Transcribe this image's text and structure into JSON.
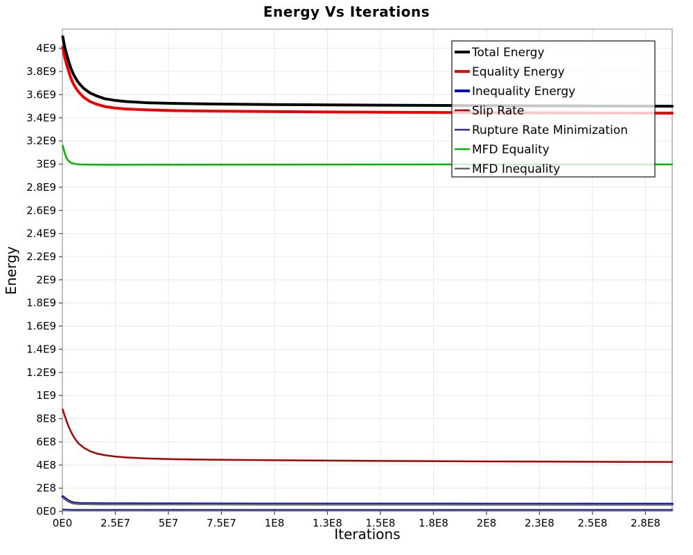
{
  "chart_data": {
    "type": "line",
    "title": "Energy Vs Iterations",
    "xlabel": "Iterations",
    "ylabel": "Energy",
    "xlim": [
      0,
      287600000
    ],
    "ylim": [
      0,
      4166000000
    ],
    "grid": true,
    "legend_position": "top-right",
    "x_ticks": [
      {
        "v": 0,
        "label": "0E0"
      },
      {
        "v": 25000000,
        "label": "2.5E7"
      },
      {
        "v": 50000000,
        "label": "5E7"
      },
      {
        "v": 75000000,
        "label": "7.5E7"
      },
      {
        "v": 100000000,
        "label": "1E8"
      },
      {
        "v": 125000000,
        "label": "1.3E8"
      },
      {
        "v": 150000000,
        "label": "1.5E8"
      },
      {
        "v": 175000000,
        "label": "1.8E8"
      },
      {
        "v": 200000000,
        "label": "2E8"
      },
      {
        "v": 225000000,
        "label": "2.3E8"
      },
      {
        "v": 250000000,
        "label": "2.5E8"
      },
      {
        "v": 275000000,
        "label": "2.8E8"
      }
    ],
    "y_ticks": [
      {
        "v": 0,
        "label": "0E0"
      },
      {
        "v": 200000000,
        "label": "2E8"
      },
      {
        "v": 400000000,
        "label": "4E8"
      },
      {
        "v": 600000000,
        "label": "6E8"
      },
      {
        "v": 800000000,
        "label": "8E8"
      },
      {
        "v": 1000000000,
        "label": "1E9"
      },
      {
        "v": 1200000000,
        "label": "1.2E9"
      },
      {
        "v": 1400000000,
        "label": "1.4E9"
      },
      {
        "v": 1600000000,
        "label": "1.6E9"
      },
      {
        "v": 1800000000,
        "label": "1.8E9"
      },
      {
        "v": 2000000000,
        "label": "2E9"
      },
      {
        "v": 2200000000,
        "label": "2.2E9"
      },
      {
        "v": 2400000000,
        "label": "2.4E9"
      },
      {
        "v": 2600000000,
        "label": "2.6E9"
      },
      {
        "v": 2800000000,
        "label": "2.8E9"
      },
      {
        "v": 3000000000,
        "label": "3E9"
      },
      {
        "v": 3200000000,
        "label": "3.2E9"
      },
      {
        "v": 3400000000,
        "label": "3.4E9"
      },
      {
        "v": 3600000000,
        "label": "3.6E9"
      },
      {
        "v": 3800000000,
        "label": "3.8E9"
      },
      {
        "v": 4000000000,
        "label": "4E9"
      }
    ],
    "series": [
      {
        "name": "Total Energy",
        "color": "#000000",
        "width": 4,
        "points": [
          [
            200000.0,
            4100000000.0
          ],
          [
            1000000.0,
            4020000000.0
          ],
          [
            2000000.0,
            3950000000.0
          ],
          [
            3000000.0,
            3885000000.0
          ],
          [
            4000000.0,
            3830000000.0
          ],
          [
            5000000.0,
            3785000000.0
          ],
          [
            6000000.0,
            3750000000.0
          ],
          [
            7000000.0,
            3720000000.0
          ],
          [
            8000000.0,
            3695000000.0
          ],
          [
            10000000.0,
            3655000000.0
          ],
          [
            13000000.0,
            3615000000.0
          ],
          [
            16000000.0,
            3590000000.0
          ],
          [
            20000000.0,
            3565000000.0
          ],
          [
            25000000.0,
            3550000000.0
          ],
          [
            30000000.0,
            3540000000.0
          ],
          [
            40000000.0,
            3530000000.0
          ],
          [
            50000000.0,
            3525000000.0
          ],
          [
            70000000.0,
            3519000000.0
          ],
          [
            100000000.0,
            3514000000.0
          ],
          [
            150000000.0,
            3509000000.0
          ],
          [
            200000000.0,
            3505000000.0
          ],
          [
            250000000.0,
            3502000000.0
          ],
          [
            287600000.0,
            3500000000.0
          ]
        ]
      },
      {
        "name": "Equality Energy",
        "color": "#ee0000",
        "width": 4,
        "points": [
          [
            200000.0,
            4010000000.0
          ],
          [
            1000000.0,
            3930000000.0
          ],
          [
            2000000.0,
            3860000000.0
          ],
          [
            3000000.0,
            3800000000.0
          ],
          [
            4000000.0,
            3745000000.0
          ],
          [
            5000000.0,
            3700000000.0
          ],
          [
            6000000.0,
            3667000000.0
          ],
          [
            7000000.0,
            3640000000.0
          ],
          [
            8000000.0,
            3617000000.0
          ],
          [
            10000000.0,
            3578000000.0
          ],
          [
            13000000.0,
            3541000000.0
          ],
          [
            16000000.0,
            3518000000.0
          ],
          [
            20000000.0,
            3497000000.0
          ],
          [
            25000000.0,
            3484000000.0
          ],
          [
            30000000.0,
            3476000000.0
          ],
          [
            40000000.0,
            3468000000.0
          ],
          [
            50000000.0,
            3463000000.0
          ],
          [
            70000000.0,
            3458000000.0
          ],
          [
            100000000.0,
            3453000000.0
          ],
          [
            150000000.0,
            3448000000.0
          ],
          [
            200000000.0,
            3444000000.0
          ],
          [
            250000000.0,
            3441000000.0
          ],
          [
            287600000.0,
            3440000000.0
          ]
        ]
      },
      {
        "name": "Inequality Energy",
        "color": "#0000dd",
        "width": 4,
        "points": [
          [
            200000.0,
            125000000.0
          ],
          [
            1000000.0,
            113000000.0
          ],
          [
            2000000.0,
            100000000.0
          ],
          [
            3000000.0,
            88000000.0
          ],
          [
            4000000.0,
            79000000.0
          ],
          [
            5000000.0,
            73000000.0
          ],
          [
            6000000.0,
            70000000.0
          ],
          [
            8000000.0,
            67500000.0
          ],
          [
            10000000.0,
            66000000.0
          ],
          [
            20000000.0,
            64500000.0
          ],
          [
            50000000.0,
            63500000.0
          ],
          [
            100000000.0,
            62500000.0
          ],
          [
            200000000.0,
            61500000.0
          ],
          [
            287600000.0,
            61000000.0
          ]
        ]
      },
      {
        "name": "Slip Rate",
        "color": "#aa0000",
        "width": 2.5,
        "points": [
          [
            200000.0,
            880000000.0
          ],
          [
            1000000.0,
            830000000.0
          ],
          [
            2000000.0,
            780000000.0
          ],
          [
            3000000.0,
            730000000.0
          ],
          [
            4000000.0,
            690000000.0
          ],
          [
            5000000.0,
            655000000.0
          ],
          [
            6000000.0,
            625000000.0
          ],
          [
            7000000.0,
            600000000.0
          ],
          [
            8000000.0,
            580000000.0
          ],
          [
            10000000.0,
            550000000.0
          ],
          [
            13000000.0,
            520000000.0
          ],
          [
            16000000.0,
            500000000.0
          ],
          [
            20000000.0,
            485000000.0
          ],
          [
            25000000.0,
            473000000.0
          ],
          [
            30000000.0,
            465000000.0
          ],
          [
            40000000.0,
            456000000.0
          ],
          [
            50000000.0,
            451000000.0
          ],
          [
            70000000.0,
            446000000.0
          ],
          [
            100000000.0,
            441000000.0
          ],
          [
            150000000.0,
            435000000.0
          ],
          [
            200000000.0,
            431000000.0
          ],
          [
            250000000.0,
            428000000.0
          ],
          [
            287600000.0,
            426000000.0
          ]
        ]
      },
      {
        "name": "Rupture Rate Minimization",
        "color": "#2b2b8f",
        "width": 2.5,
        "points": [
          [
            200000.0,
            15000000.0
          ],
          [
            2000000.0,
            13000000.0
          ],
          [
            5000000.0,
            12000000.0
          ],
          [
            10000000.0,
            12000000.0
          ],
          [
            100000000.0,
            12000000.0
          ],
          [
            287600000.0,
            12000000.0
          ]
        ]
      },
      {
        "name": "MFD Equality",
        "color": "#00b300",
        "width": 2.5,
        "points": [
          [
            200000.0,
            3160000000.0
          ],
          [
            1000000.0,
            3100000000.0
          ],
          [
            2000000.0,
            3050000000.0
          ],
          [
            3000000.0,
            3025000000.0
          ],
          [
            4000000.0,
            3012000000.0
          ],
          [
            5000000.0,
            3005000000.0
          ],
          [
            7000000.0,
            2999000000.0
          ],
          [
            10000000.0,
            2996000000.0
          ],
          [
            20000000.0,
            2994000000.0
          ],
          [
            50000000.0,
            2995000000.0
          ],
          [
            100000000.0,
            2996000000.0
          ],
          [
            200000000.0,
            2997000000.0
          ],
          [
            287600000.0,
            2997000000.0
          ]
        ]
      },
      {
        "name": "MFD Inequality",
        "color": "#666666",
        "width": 2.5,
        "points": [
          [
            200000.0,
            119000000.0
          ],
          [
            1000000.0,
            107000000.0
          ],
          [
            2000000.0,
            94000000.0
          ],
          [
            3000000.0,
            82000000.0
          ],
          [
            4000000.0,
            73000000.0
          ],
          [
            5000000.0,
            68000000.0
          ],
          [
            6000000.0,
            65500000.0
          ],
          [
            8000000.0,
            63000000.0
          ],
          [
            10000000.0,
            61500000.0
          ],
          [
            20000000.0,
            60000000.0
          ],
          [
            50000000.0,
            59000000.0
          ],
          [
            100000000.0,
            58200000.0
          ],
          [
            200000000.0,
            57500000.0
          ],
          [
            287600000.0,
            57000000.0
          ]
        ]
      }
    ],
    "draw_order": [
      3,
      5,
      4,
      2,
      6,
      1,
      0
    ],
    "colors": {
      "grid": "#e8e8e8",
      "frame": "#999999",
      "tick": "#444444",
      "legend_border": "#222222",
      "legend_bg_alpha": 0.78
    }
  }
}
